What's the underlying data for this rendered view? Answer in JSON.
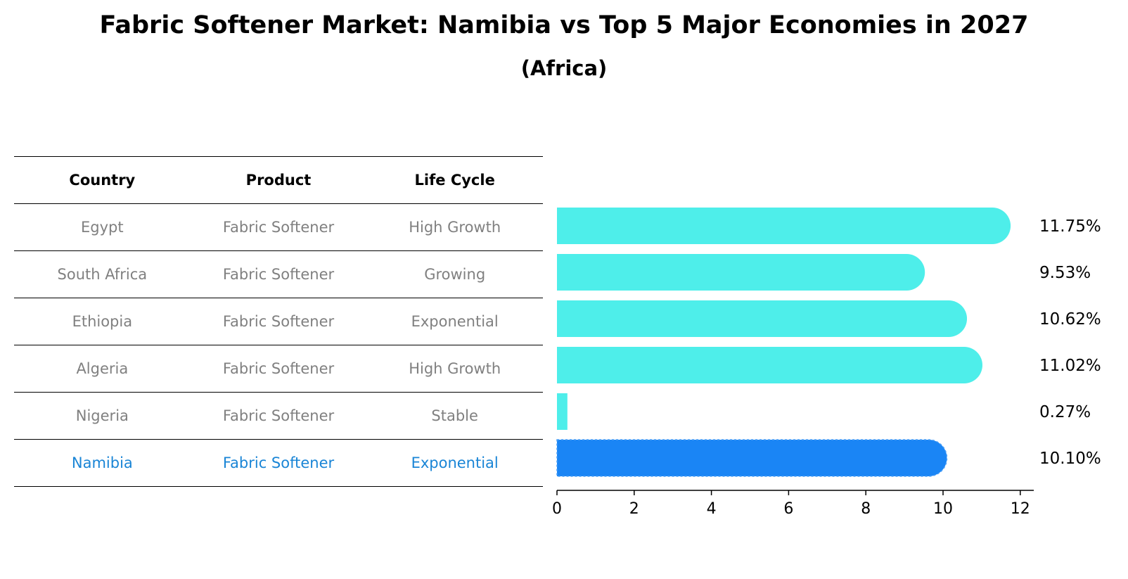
{
  "chart_data": {
    "type": "bar",
    "orientation": "horizontal",
    "title": "Fabric Softener Market: Namibia vs Top 5 Major Economies in 2027",
    "subtitle": "(Africa)",
    "table": {
      "headers": [
        "Country",
        "Product",
        "Life Cycle"
      ],
      "rows": [
        {
          "country": "Egypt",
          "product": "Fabric Softener",
          "life_cycle": "High Growth"
        },
        {
          "country": "South Africa",
          "product": "Fabric Softener",
          "life_cycle": "Growing"
        },
        {
          "country": "Ethiopia",
          "product": "Fabric Softener",
          "life_cycle": "Exponential"
        },
        {
          "country": "Algeria",
          "product": "Fabric Softener",
          "life_cycle": "High Growth"
        },
        {
          "country": "Nigeria",
          "product": "Fabric Softener",
          "life_cycle": "Stable"
        },
        {
          "country": "Namibia",
          "product": "Fabric Softener",
          "life_cycle": "Exponential"
        }
      ]
    },
    "categories": [
      "Egypt",
      "South Africa",
      "Ethiopia",
      "Algeria",
      "Nigeria",
      "Namibia"
    ],
    "values": [
      11.75,
      9.53,
      10.62,
      11.02,
      0.27,
      10.1
    ],
    "value_labels": [
      "11.75%",
      "9.53%",
      "10.62%",
      "11.02%",
      "0.27%",
      "10.10%"
    ],
    "highlight": "Namibia",
    "xlim": [
      0,
      12
    ],
    "xticks": [
      0,
      2,
      4,
      6,
      8,
      10,
      12
    ],
    "colors": {
      "default": "#4eeeea",
      "highlight": "#1a85f5",
      "highlight_text": "#1a85d6"
    }
  }
}
